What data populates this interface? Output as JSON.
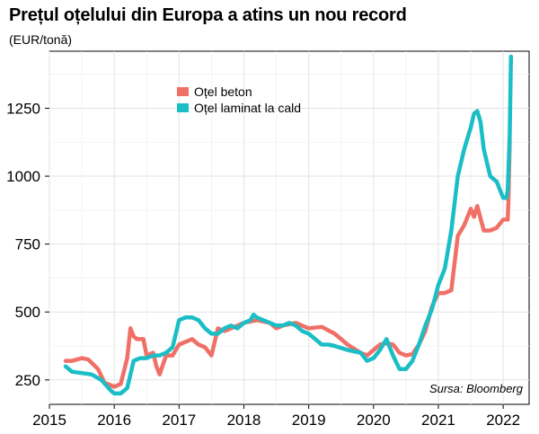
{
  "chart_data": {
    "type": "line",
    "title": "Prețul oțelului din Europa a atins un nou record",
    "subtitle": "(EUR/tonă)",
    "source": "Sursa: Bloomberg",
    "xlim": [
      2015,
      2022.4
    ],
    "ylim": [
      160,
      1460
    ],
    "x_ticks": [
      {
        "value": 2015,
        "label": "2015"
      },
      {
        "value": 2016,
        "label": "2016"
      },
      {
        "value": 2017,
        "label": "2017"
      },
      {
        "value": 2018,
        "label": "2018"
      },
      {
        "value": 2019,
        "label": "2019"
      },
      {
        "value": 2020,
        "label": "2020"
      },
      {
        "value": 2021,
        "label": "2021"
      },
      {
        "value": 2022,
        "label": "2022"
      }
    ],
    "y_ticks": [
      {
        "value": 250,
        "label": "250"
      },
      {
        "value": 500,
        "label": "500"
      },
      {
        "value": 750,
        "label": "750"
      },
      {
        "value": 1000,
        "label": "1000"
      },
      {
        "value": 1250,
        "label": "1250"
      }
    ],
    "grid": true,
    "legend_position": "top-left",
    "series": [
      {
        "name": "Oțel beton",
        "color": "#f07067",
        "x": [
          2015.25,
          2015.35,
          2015.5,
          2015.6,
          2015.75,
          2015.85,
          2016.0,
          2016.1,
          2016.2,
          2016.25,
          2016.3,
          2016.35,
          2016.45,
          2016.5,
          2016.6,
          2016.65,
          2016.7,
          2016.8,
          2016.9,
          2017.0,
          2017.1,
          2017.2,
          2017.3,
          2017.4,
          2017.5,
          2017.6,
          2017.7,
          2017.8,
          2017.9,
          2018.0,
          2018.2,
          2018.4,
          2018.5,
          2018.6,
          2018.8,
          2019.0,
          2019.2,
          2019.4,
          2019.5,
          2019.6,
          2019.8,
          2019.9,
          2020.0,
          2020.1,
          2020.2,
          2020.3,
          2020.4,
          2020.5,
          2020.6,
          2020.7,
          2020.8,
          2020.9,
          2021.0,
          2021.1,
          2021.2,
          2021.25,
          2021.3,
          2021.4,
          2021.5,
          2021.55,
          2021.6,
          2021.7,
          2021.8,
          2021.9,
          2022.0,
          2022.07,
          2022.08,
          2022.1
        ],
        "values": [
          320,
          320,
          330,
          325,
          290,
          240,
          225,
          235,
          330,
          440,
          410,
          400,
          400,
          340,
          350,
          300,
          270,
          340,
          340,
          380,
          390,
          400,
          380,
          370,
          340,
          440,
          430,
          440,
          450,
          460,
          470,
          460,
          440,
          450,
          460,
          440,
          445,
          420,
          400,
          380,
          350,
          340,
          360,
          380,
          385,
          380,
          350,
          340,
          345,
          380,
          430,
          520,
          570,
          570,
          580,
          680,
          780,
          820,
          880,
          850,
          890,
          800,
          800,
          810,
          840,
          840,
          900,
          1130
        ]
      },
      {
        "name": "Oțel laminat la cald",
        "color": "#1bbec5",
        "x": [
          2015.25,
          2015.35,
          2015.5,
          2015.65,
          2015.8,
          2015.95,
          2016.0,
          2016.1,
          2016.2,
          2016.3,
          2016.4,
          2016.5,
          2016.6,
          2016.7,
          2016.8,
          2016.9,
          2017.0,
          2017.1,
          2017.2,
          2017.3,
          2017.4,
          2017.5,
          2017.6,
          2017.7,
          2017.8,
          2017.9,
          2018.0,
          2018.1,
          2018.15,
          2018.2,
          2018.3,
          2018.4,
          2018.5,
          2018.6,
          2018.7,
          2018.8,
          2018.9,
          2019.0,
          2019.1,
          2019.2,
          2019.3,
          2019.4,
          2019.6,
          2019.8,
          2019.9,
          2020.0,
          2020.1,
          2020.2,
          2020.3,
          2020.4,
          2020.5,
          2020.6,
          2020.7,
          2020.8,
          2020.9,
          2021.0,
          2021.1,
          2021.2,
          2021.3,
          2021.4,
          2021.5,
          2021.55,
          2021.6,
          2021.65,
          2021.7,
          2021.8,
          2021.9,
          2021.95,
          2022.0,
          2022.05,
          2022.07,
          2022.1,
          2022.12
        ],
        "values": [
          300,
          280,
          275,
          270,
          250,
          210,
          200,
          200,
          220,
          320,
          330,
          330,
          340,
          340,
          350,
          370,
          470,
          480,
          480,
          470,
          440,
          420,
          420,
          440,
          450,
          440,
          460,
          470,
          490,
          480,
          470,
          460,
          450,
          450,
          460,
          450,
          430,
          420,
          400,
          380,
          380,
          375,
          360,
          350,
          320,
          330,
          360,
          400,
          340,
          290,
          290,
          320,
          380,
          450,
          510,
          600,
          660,
          800,
          1000,
          1100,
          1180,
          1230,
          1240,
          1200,
          1100,
          1000,
          980,
          950,
          920,
          920,
          950,
          1150,
          1440
        ]
      }
    ]
  }
}
